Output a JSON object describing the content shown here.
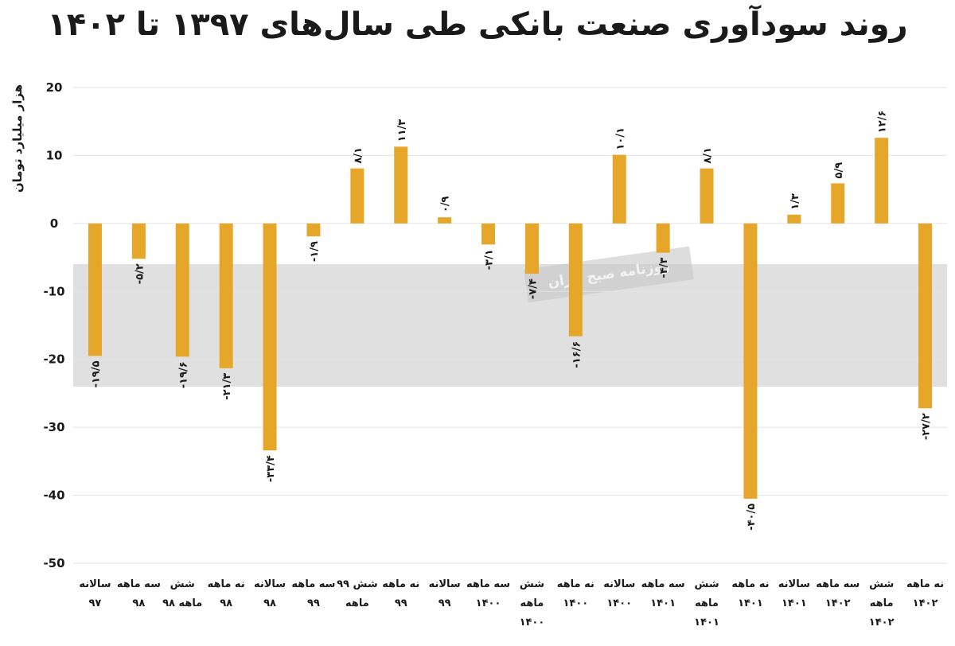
{
  "title": "روند سودآوری صنعت بانکی طی سال‌های ۱۳۹۷ تا ۱۴۰۲",
  "watermark_text": "روزنامه صبح ایران",
  "colors": {
    "bar": "#E5A62A",
    "grid": "#e3e3e3",
    "band": "#d6d6d6"
  },
  "chart_data": {
    "type": "bar",
    "title": "روند سودآوری صنعت بانکی طی سال‌های ۱۳۹۷ تا ۱۴۰۲",
    "ylabel": "هزار میلیارد تومان",
    "xlabel": "",
    "ylim": [
      -50,
      20
    ],
    "yticks": [
      {
        "value": 20,
        "label": "20"
      },
      {
        "value": 10,
        "label": "10"
      },
      {
        "value": 0,
        "label": "0"
      },
      {
        "value": -10,
        "label": "-10"
      },
      {
        "value": -20,
        "label": "-20"
      },
      {
        "value": -30,
        "label": "-30"
      },
      {
        "value": -40,
        "label": "-40"
      },
      {
        "value": -50,
        "label": "-50"
      }
    ],
    "grid": true,
    "categories": [
      [
        "سالانه",
        "۹۷"
      ],
      [
        "سه ماهه",
        "۹۸"
      ],
      [
        "شش",
        "ماهه ۹۸"
      ],
      [
        "نه ماهه",
        "۹۸"
      ],
      [
        "سالانه",
        "۹۸"
      ],
      [
        "سه ماهه",
        "۹۹"
      ],
      [
        "شش ۹۹",
        "ماهه"
      ],
      [
        "نه ماهه",
        "۹۹"
      ],
      [
        "سالانه",
        "۹۹"
      ],
      [
        "سه ماهه",
        "۱۴۰۰"
      ],
      [
        "شش",
        "ماهه",
        "۱۴۰۰"
      ],
      [
        "نه ماهه",
        "۱۴۰۰"
      ],
      [
        "سالانه",
        "۱۴۰۰"
      ],
      [
        "سه ماهه",
        "۱۴۰۱"
      ],
      [
        "شش",
        "ماهه",
        "۱۴۰۱"
      ],
      [
        "نه ماهه",
        "۱۴۰۱"
      ],
      [
        "سالانه",
        "۱۴۰۱"
      ],
      [
        "سه ماهه",
        "۱۴۰۲"
      ],
      [
        "شش",
        "ماهه",
        "۱۴۰۲"
      ],
      [
        "نه ماهه",
        "۱۴۰۲"
      ]
    ],
    "values": [
      -19.5,
      -5.2,
      -19.6,
      -21.3,
      -33.4,
      -1.9,
      8.1,
      11.3,
      0.9,
      -3.1,
      -7.4,
      -16.6,
      10.1,
      -4.3,
      8.1,
      -40.5,
      1.3,
      5.9,
      12.6,
      -27.2
    ],
    "data_labels": [
      "-۱۹/۵",
      "-۵/۲",
      "-۱۹/۶",
      "-۲۱/۳",
      "-۳۳/۴",
      "-۱/۹",
      "۸/۱",
      "۱۱/۳",
      "۰/۹",
      "-۳/۱",
      "-۷/۴",
      "-۱۶/۶",
      "۱۰/۱",
      "-۴/۳",
      "۸/۱",
      "-۴۰/۵",
      "۱/۳",
      "۵/۹",
      "۱۲/۶",
      "-۲۷/۲"
    ]
  }
}
